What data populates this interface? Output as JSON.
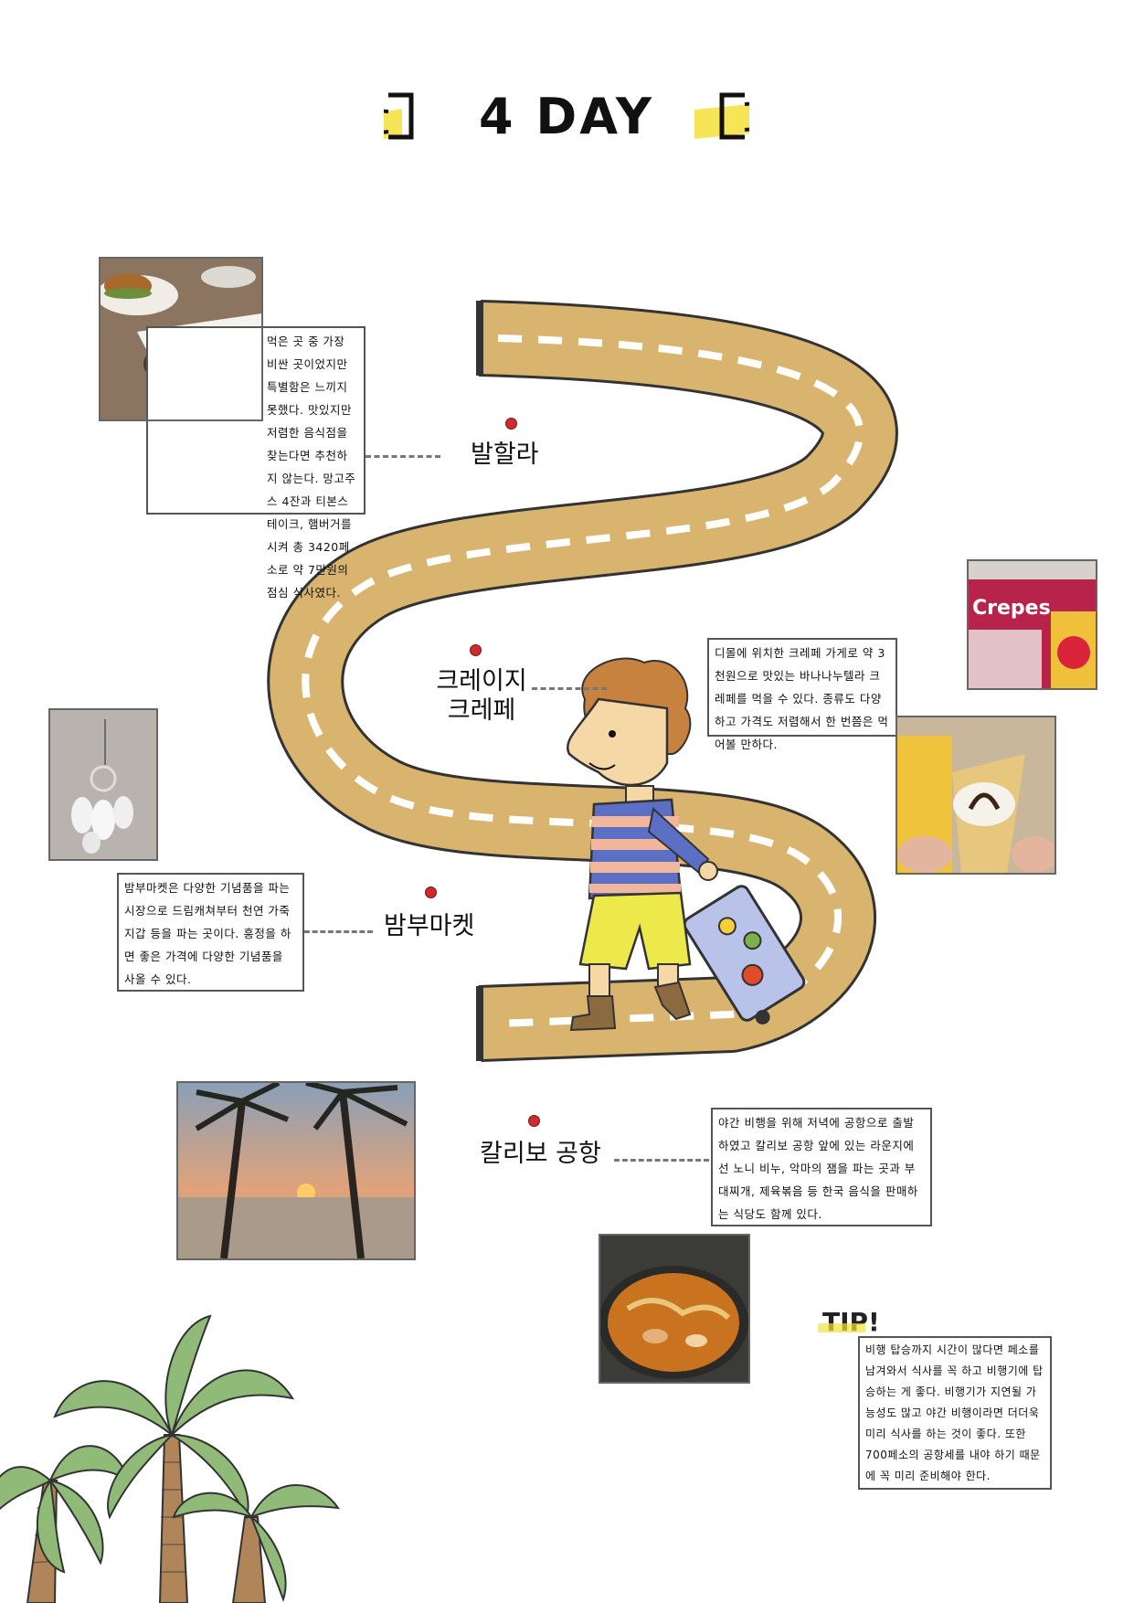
{
  "title": "4 DAY",
  "places": {
    "valhalla": {
      "name": "발할라",
      "note": "먹은 곳 중 가장 비싼 곳이었지만 특별함은 느끼지 못했다. 맛있지만 저렴한 음식점을 찾는다면 추천하지 않는다. 망고주스 4잔과 티본스테이크, 햄버거를 시켜 총 3420페소로 약 7만원의 점심 식사였다."
    },
    "crepe": {
      "name_line1": "크레이지",
      "name_line2": "크레페",
      "note": "디몰에 위치한 크레페 가게로 약 3천원으로 맛있는 바나나누텔라 크레페를 먹을 수 있다. 종류도 다양하고 가격도 저렴해서 한 번쯤은 먹어볼 만하다."
    },
    "bamboo": {
      "name": "밤부마켓",
      "note": "밤부마켓은 다양한 기념품을 파는 시장으로 드림캐쳐부터 천연 가죽 지갑 등을 파는 곳이다. 흥정을 하면 좋은 가격에 다양한 기념품을 사올 수 있다."
    },
    "airport": {
      "name": "칼리보 공항",
      "note": "야간 비행을 위해 저녁에 공항으로 출발하였고 칼리보 공항 앞에 있는 라운지에선 노니 비누, 악마의 잼을 파는 곳과 부대찌개, 제육볶음 등 한국 음식을 판매하는 식당도 함께 있다."
    }
  },
  "tip": {
    "label": "TIP!",
    "text": "비행 탑승까지 시간이 많다면 페소를 남겨와서 식사를 꼭 하고 비행기에 탑승하는 게 좋다. 비행기가 지연될 가능성도 많고 야간 비행이라면 더더욱 미리 식사를 하는 것이 좋다. 또한 700페소의 공항세를 내야 하기 때문에 꼭 미리 준비해야 한다."
  },
  "sign_text": "Crepes",
  "colors": {
    "road": "#d9b46f",
    "road_edge": "#333333",
    "palm_leaf": "#8fba78",
    "palm_trunk": "#b0855a",
    "title_highlight": "#f5e23a",
    "dot": "#d02a2a"
  }
}
